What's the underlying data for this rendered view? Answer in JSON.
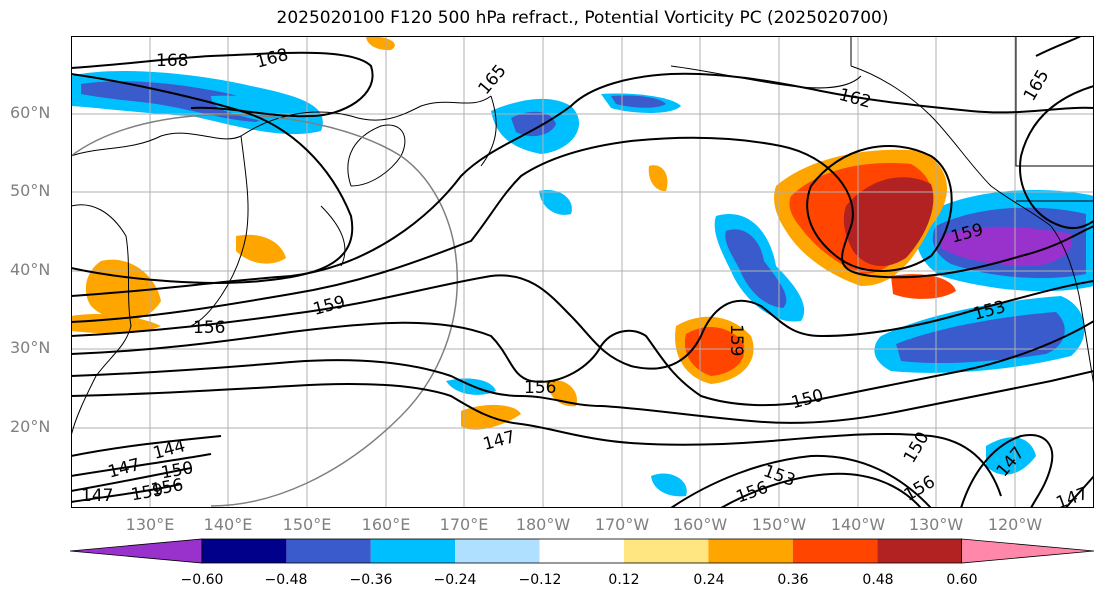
{
  "title": "2025020100 F120 500 hPa refract., Potential Vorticity PC (2025020700)",
  "lat_labels": [
    "60°N",
    "50°N",
    "40°N",
    "30°N",
    "20°N"
  ],
  "lon_labels": [
    "130°E",
    "140°E",
    "150°E",
    "160°E",
    "170°E",
    "180°W",
    "170°W",
    "160°W",
    "150°W",
    "140°W",
    "130°W",
    "120°W"
  ],
  "colorbar": {
    "ticks": [
      "−0.60",
      "−0.48",
      "−0.36",
      "−0.24",
      "−0.12",
      "0.12",
      "0.24",
      "0.36",
      "0.48",
      "0.60"
    ],
    "colors": [
      "#9932cc",
      "#00008b",
      "#3a5bcc",
      "#00bfff",
      "#b0e0ff",
      "#ffffff",
      "#ffe680",
      "#ffa500",
      "#ff4500",
      "#b22222",
      "#ff88aa"
    ]
  },
  "contour_labels": [
    "168",
    "168",
    "165",
    "162",
    "165",
    "159",
    "156",
    "159",
    "156",
    "153",
    "150",
    "147",
    "144",
    "147",
    "150",
    "156",
    "159",
    "147",
    "150",
    "153",
    "156",
    "156",
    "159",
    "147",
    "147"
  ]
}
